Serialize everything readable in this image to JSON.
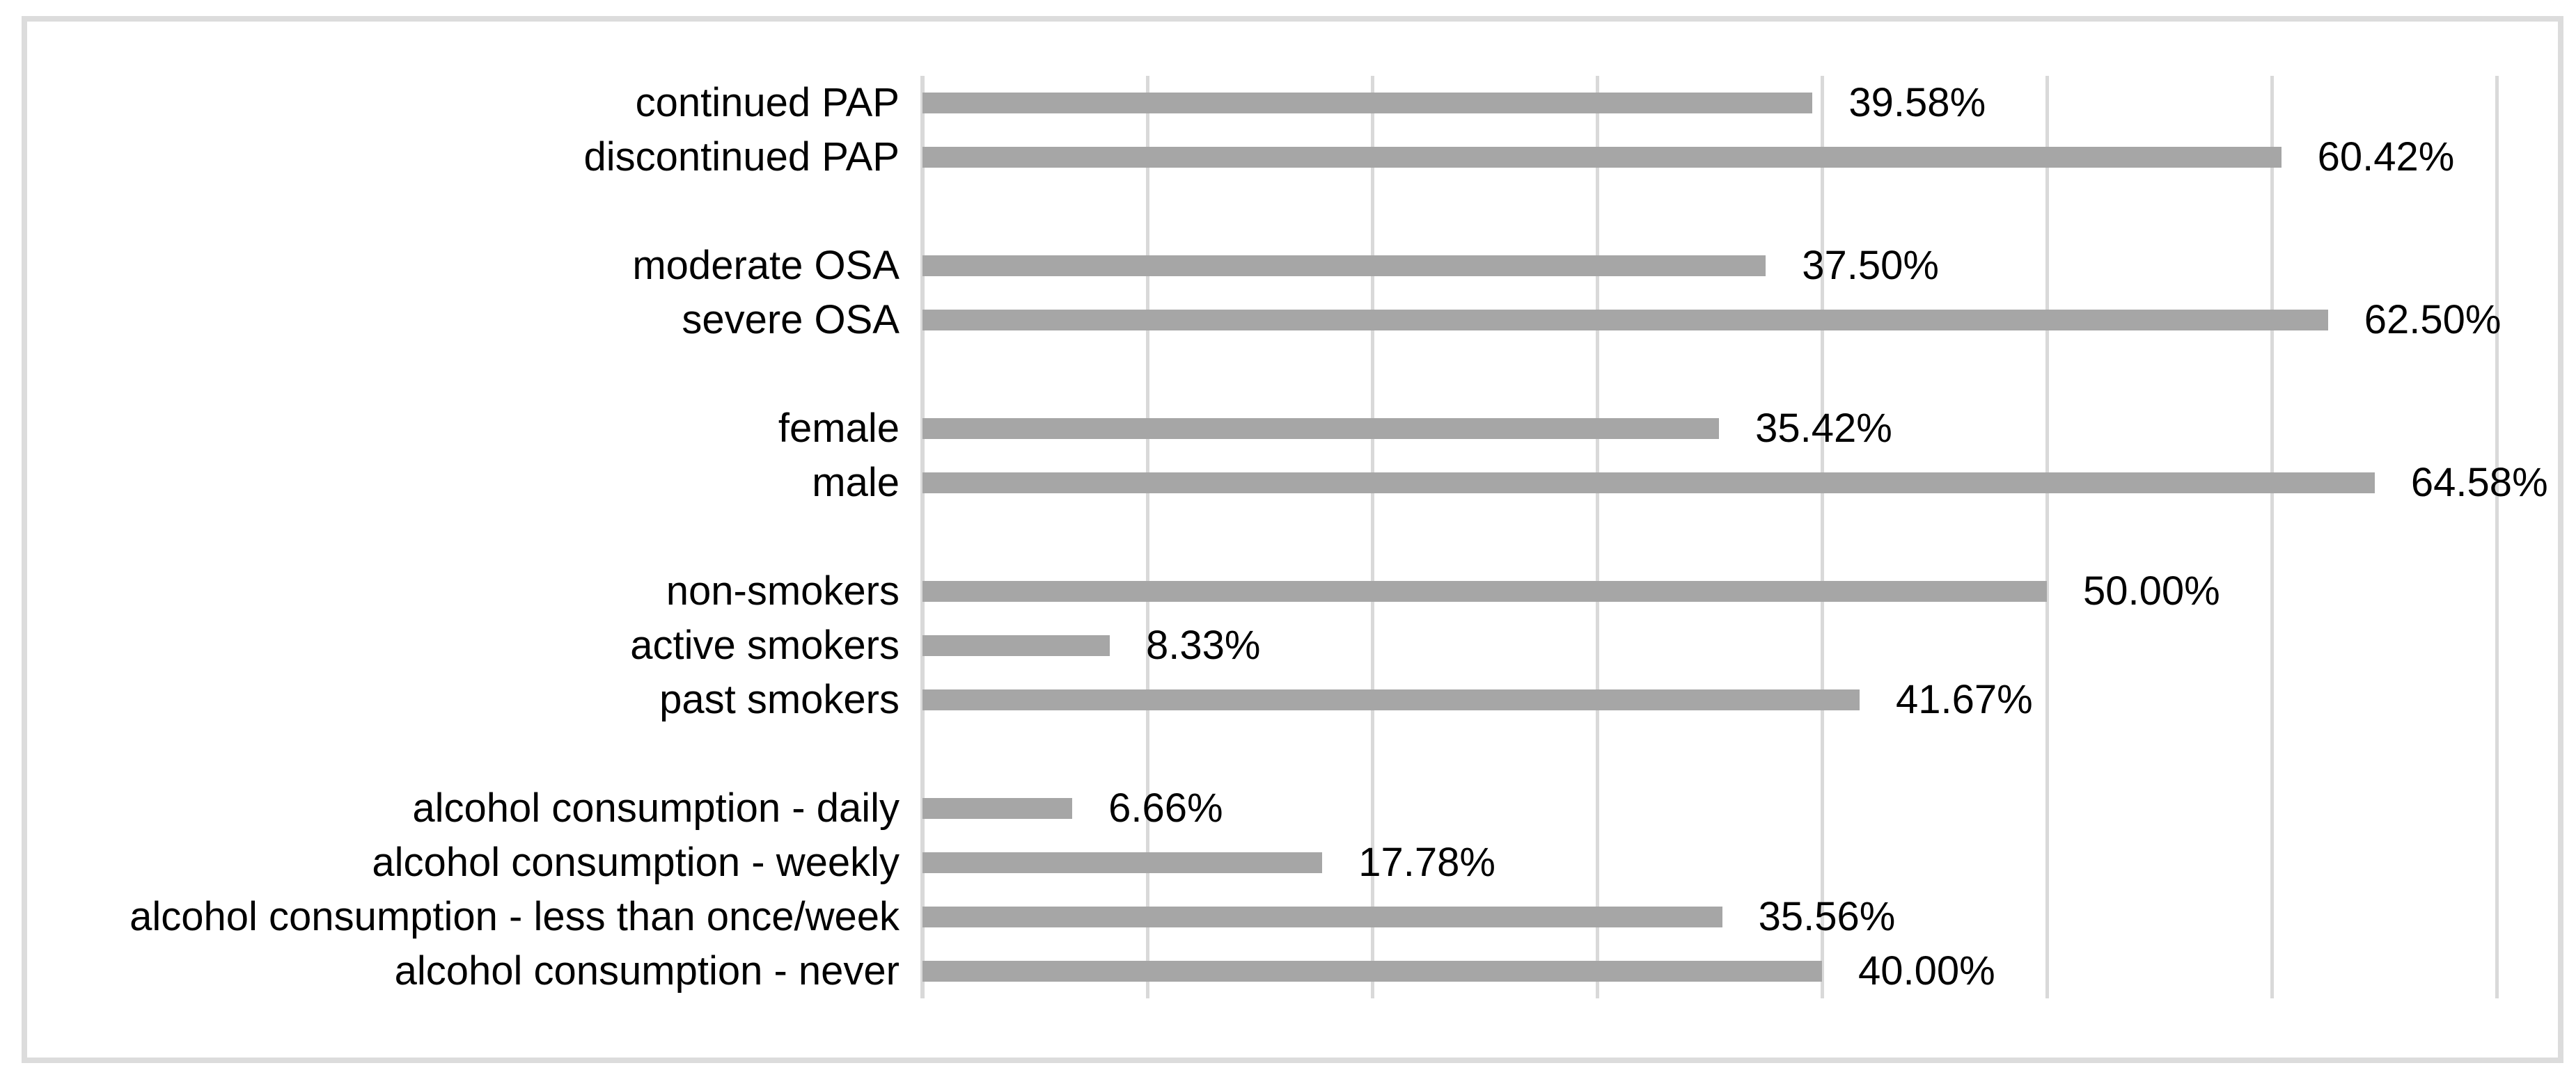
{
  "chart_data": {
    "type": "bar",
    "orientation": "horizontal",
    "title": "",
    "subtitle": "",
    "xlabel": "",
    "ylabel": "",
    "xlim": [
      0,
      70
    ],
    "gridline_step": 10,
    "grid": "vertical",
    "legend": "none",
    "axis_tick_labels": "none",
    "colors": {
      "bar_fill": "#a6a6a6",
      "gridline": "#d9d9d9",
      "frame_border": "#dcdcdc",
      "text": "#000000",
      "background": "#ffffff"
    },
    "rows": [
      {
        "label": "continued PAP",
        "value": 39.58,
        "display": "39.58%"
      },
      {
        "label": "discontinued PAP",
        "value": 60.42,
        "display": "60.42%"
      },
      {
        "label": "",
        "value": null,
        "display": ""
      },
      {
        "label": "moderate OSA",
        "value": 37.5,
        "display": "37.50%"
      },
      {
        "label": "severe OSA",
        "value": 62.5,
        "display": "62.50%"
      },
      {
        "label": "",
        "value": null,
        "display": ""
      },
      {
        "label": "female",
        "value": 35.42,
        "display": "35.42%"
      },
      {
        "label": "male",
        "value": 64.58,
        "display": "64.58%"
      },
      {
        "label": "",
        "value": null,
        "display": ""
      },
      {
        "label": "non-smokers",
        "value": 50.0,
        "display": "50.00%"
      },
      {
        "label": "active smokers",
        "value": 8.33,
        "display": "8.33%"
      },
      {
        "label": "past smokers",
        "value": 41.67,
        "display": "41.67%"
      },
      {
        "label": "",
        "value": null,
        "display": ""
      },
      {
        "label": "alcohol consumption - daily",
        "value": 6.66,
        "display": "6.66%"
      },
      {
        "label": "alcohol consumption - weekly",
        "value": 17.78,
        "display": "17.78%"
      },
      {
        "label": "alcohol consumption - less than once/week",
        "value": 35.56,
        "display": "35.56%"
      },
      {
        "label": "alcohol consumption - never",
        "value": 40.0,
        "display": "40.00%"
      }
    ]
  }
}
